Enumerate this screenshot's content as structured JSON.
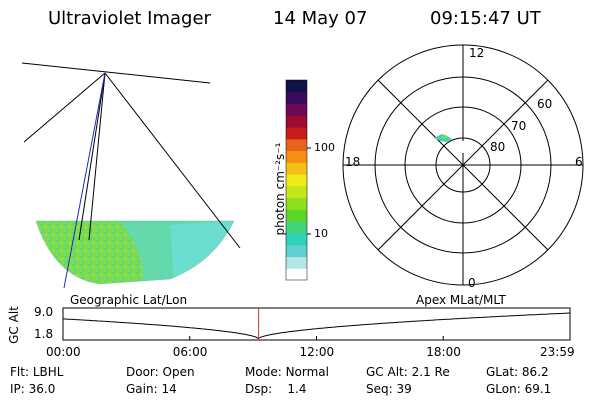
{
  "header": {
    "title": "Ultraviolet Imager",
    "date": "14 May 07",
    "time": "09:15:47 UT"
  },
  "colorbar": {
    "unit_label": "photon cm⁻²s⁻¹",
    "tick_100": "100",
    "tick_10": "10",
    "colors": [
      "#ffffff",
      "#b5e6e6",
      "#5fd0d0",
      "#2dd2b9",
      "#42d47a",
      "#5ad82a",
      "#8ee01e",
      "#c4e61a",
      "#f0ea18",
      "#f3c017",
      "#f48f14",
      "#e8621b",
      "#c81c1c",
      "#9b0c2e",
      "#6c0a56",
      "#3a0a5c",
      "#12124a"
    ]
  },
  "polar": {
    "mlt_12": "12",
    "mlt_18": "18",
    "mlt_6": "6",
    "mlt_0": "0",
    "lat_60": "60",
    "lat_70": "70",
    "lat_80": "80"
  },
  "timeline": {
    "ylabel": "GC Alt",
    "y_top": "9.0",
    "y_bottom": "1.8",
    "left_caption": "Geographic Lat/Lon",
    "right_caption": "Apex MLat/MLT",
    "ticks": [
      "00:00",
      "06:00",
      "12:00",
      "18:00",
      "23:59"
    ],
    "current_time_hours": 9.26,
    "marker_color": "#c0392b"
  },
  "footer": {
    "flt_label": "Flt:",
    "flt_value": "LBHL",
    "ip_label": "IP:",
    "ip_value": "36.0",
    "door_label": "Door:",
    "door_value": "Open",
    "gain_label": "Gain:",
    "gain_value": "14",
    "mode_label": "Mode:",
    "mode_value": "Normal",
    "dsp_label": "Dsp:",
    "dsp_value": "1.4",
    "gcalt_label": "GC Alt:",
    "gcalt_value": "2.1 Re",
    "seq_label": "Seq:",
    "seq_value": "39",
    "glat_label": "GLat:",
    "glat_value": "86.2",
    "glon_label": "GLon:",
    "glon_value": "69.1"
  }
}
